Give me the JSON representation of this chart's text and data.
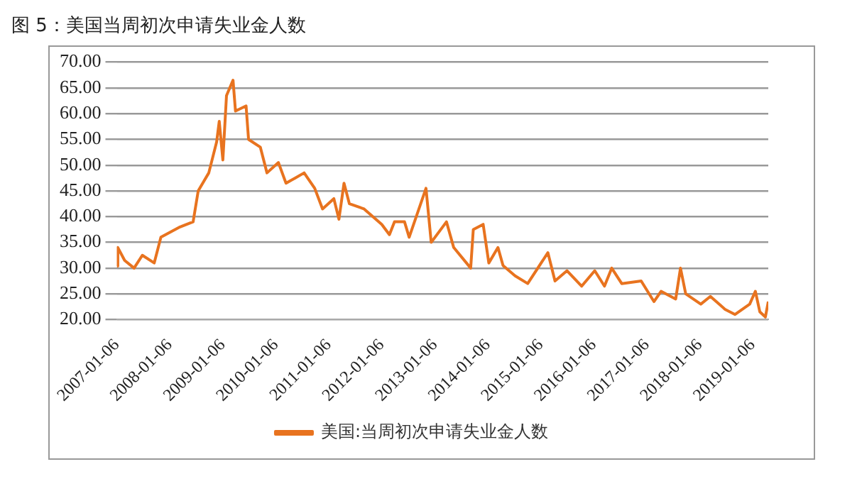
{
  "chart_data": {
    "type": "line",
    "title": "图 5：美国当周初次申请失业金人数",
    "x": [
      "2007-01-06",
      "2007-01-13",
      "2007-03-01",
      "2007-05-05",
      "2007-07-01",
      "2007-09-21",
      "2007-11-06",
      "2008-03-17",
      "2008-06-15",
      "2008-07-20",
      "2008-10-01",
      "2008-11-24",
      "2008-12-12",
      "2009-01-06",
      "2009-01-31",
      "2009-03-17",
      "2009-04-03",
      "2009-06-15",
      "2009-07-02",
      "2009-09-21",
      "2009-11-06",
      "2010-01-24",
      "2010-03-17",
      "2010-05-19",
      "2010-07-20",
      "2010-10-01",
      "2010-11-24",
      "2011-02-10",
      "2011-03-17",
      "2011-04-21",
      "2011-05-28",
      "2011-09-06",
      "2012-01-06",
      "2012-02-28",
      "2012-04-03",
      "2012-06-11",
      "2012-07-13",
      "2012-11-06",
      "2012-12-12",
      "2013-03-27",
      "2013-05-16",
      "2013-09-10",
      "2013-09-28",
      "2013-12-05",
      "2014-01-13",
      "2014-03-17",
      "2014-04-21",
      "2014-07-13",
      "2014-10-08",
      "2015-02-24",
      "2015-04-14",
      "2015-07-06",
      "2015-10-15",
      "2016-01-13",
      "2016-03-20",
      "2016-05-09",
      "2016-07-17",
      "2016-11-28",
      "2017-02-24",
      "2017-04-14",
      "2017-07-24",
      "2017-08-26",
      "2017-10-01",
      "2018-01-13",
      "2018-03-20",
      "2018-06-29",
      "2018-09-06",
      "2018-12-16",
      "2019-01-24",
      "2019-02-24",
      "2019-04-03",
      "2019-04-23"
    ],
    "series": [
      {
        "name": "美国:当周初次申请失业金人数",
        "color": "#e8731f",
        "values": [
          30.4,
          34,
          31.5,
          30,
          32.5,
          31,
          36,
          38,
          39,
          45,
          48.5,
          54.5,
          58.5,
          51,
          63.5,
          66.5,
          60.5,
          61.5,
          55,
          53.5,
          48.5,
          50.5,
          46.5,
          47.5,
          48.5,
          45.5,
          41.5,
          43.5,
          39.5,
          46.5,
          42.5,
          41.5,
          38.5,
          36.5,
          39,
          39,
          36,
          45.5,
          35,
          39,
          34,
          30,
          37.5,
          38.5,
          31,
          34,
          30.5,
          28.5,
          27,
          33,
          27.5,
          29.5,
          26.5,
          29.5,
          26.5,
          30,
          27,
          27.5,
          23.5,
          25.5,
          24,
          30,
          25,
          23,
          24.5,
          22,
          21,
          23,
          25.5,
          21.5,
          20.5,
          23.5
        ]
      }
    ],
    "xlim": [
      "2007-01-06",
      "2019-04-23"
    ],
    "xticks": [
      "2007-01-06",
      "2008-01-06",
      "2009-01-06",
      "2010-01-06",
      "2011-01-06",
      "2012-01-06",
      "2013-01-06",
      "2014-01-06",
      "2015-01-06",
      "2016-01-06",
      "2017-01-06",
      "2018-01-06",
      "2019-01-06"
    ],
    "ylim": [
      20,
      70
    ],
    "yticks": [
      {
        "value": 20,
        "label": "20.00"
      },
      {
        "value": 25,
        "label": "25.00"
      },
      {
        "value": 30,
        "label": "30.00"
      },
      {
        "value": 35,
        "label": "35.00"
      },
      {
        "value": 40,
        "label": "40.00"
      },
      {
        "value": 45,
        "label": "45.00"
      },
      {
        "value": 50,
        "label": "50.00"
      },
      {
        "value": 55,
        "label": "55.00"
      },
      {
        "value": 60,
        "label": "60.00"
      },
      {
        "value": 65,
        "label": "65.00"
      },
      {
        "value": 70,
        "label": "70.00"
      }
    ],
    "grid": "y",
    "legend": "bottom",
    "marker": "none",
    "line_style": "solid"
  }
}
